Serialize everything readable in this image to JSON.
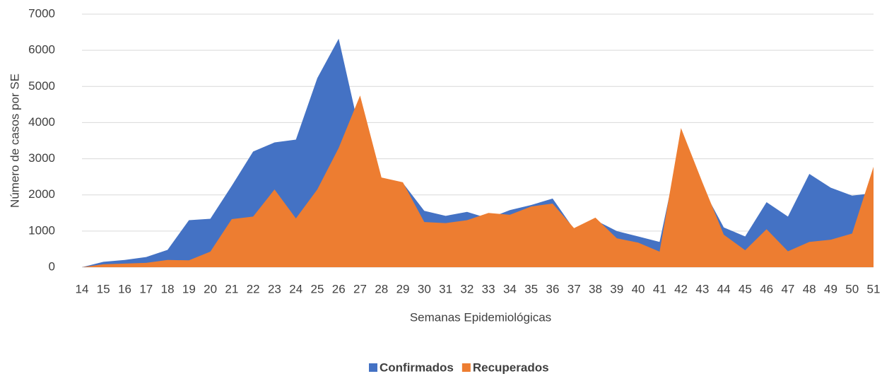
{
  "chart_data": {
    "type": "area",
    "x_label": "Semanas Epidemiológicas",
    "y_label": "Número de casos por SE",
    "categories": [
      "14",
      "15",
      "16",
      "17",
      "18",
      "19",
      "20",
      "21",
      "22",
      "23",
      "24",
      "25",
      "26",
      "27",
      "28",
      "29",
      "30",
      "31",
      "32",
      "33",
      "34",
      "35",
      "36",
      "37",
      "38",
      "39",
      "40",
      "41",
      "42",
      "43",
      "44",
      "45",
      "46",
      "47",
      "48",
      "49",
      "50",
      "51"
    ],
    "series": [
      {
        "name": "Confirmados",
        "color": "#4472c4",
        "values": [
          0,
          150,
          200,
          280,
          480,
          1300,
          1340,
          2250,
          3200,
          3450,
          3530,
          5230,
          6320,
          3700,
          2450,
          2330,
          1560,
          1420,
          1530,
          1350,
          1580,
          1720,
          1900,
          1050,
          1300,
          1000,
          850,
          700,
          3500,
          2200,
          1100,
          850,
          1800,
          1400,
          2580,
          2200,
          1980,
          2050
        ]
      },
      {
        "name": "Recuperados",
        "color": "#ed7d31",
        "values": [
          0,
          80,
          100,
          120,
          200,
          190,
          430,
          1330,
          1400,
          2150,
          1350,
          2150,
          3300,
          4750,
          2480,
          2350,
          1250,
          1220,
          1300,
          1500,
          1450,
          1680,
          1760,
          1080,
          1370,
          800,
          680,
          430,
          3850,
          2350,
          900,
          470,
          1050,
          440,
          700,
          760,
          930,
          2780
        ]
      }
    ],
    "ylim": [
      0,
      7000
    ],
    "yticks": [
      0,
      1000,
      2000,
      3000,
      4000,
      5000,
      6000,
      7000
    ],
    "grid": true,
    "legend": "bottom"
  }
}
